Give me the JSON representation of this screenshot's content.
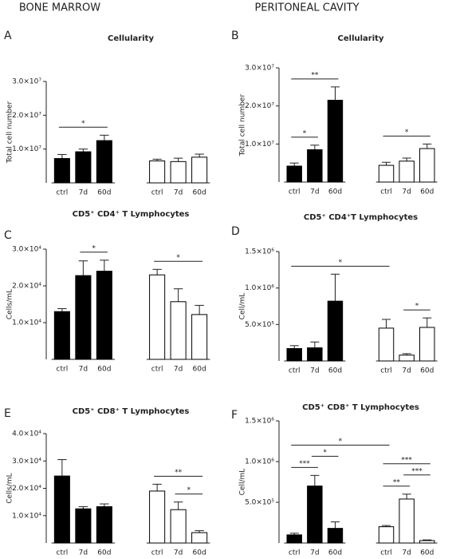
{
  "headers": [
    "BONE MARROW",
    "PERITONEAL CAVITY"
  ],
  "chart_data": [
    {
      "type": "bar",
      "panel": "A",
      "title": "Cellularity",
      "ylabel": "Total cell number",
      "categories": [
        "ctrl",
        "7d",
        "60d"
      ],
      "series": [
        {
          "color": "#000000",
          "values": [
            7200000,
            9200000,
            12500000
          ],
          "errors": [
            1200000,
            800000,
            1600000
          ]
        },
        {
          "color": "#ffffff",
          "values": [
            6500000,
            6300000,
            7600000
          ],
          "errors": [
            500000,
            1000000,
            900000
          ]
        }
      ],
      "ylim": [
        0,
        30000000
      ],
      "yticks": [
        {
          "value": 10000000,
          "label": "1.0×10⁷"
        },
        {
          "value": 20000000,
          "label": "2.0×10⁷"
        },
        {
          "value": 30000000,
          "label": "3.0×10⁷"
        }
      ],
      "annotations": [
        {
          "text": "*",
          "from": 0,
          "to": 2
        }
      ]
    },
    {
      "type": "bar",
      "panel": "B",
      "title": "Cellularity",
      "ylabel": "Total cell number",
      "categories": [
        "ctrl",
        "7d",
        "60d"
      ],
      "series": [
        {
          "color": "#000000",
          "values": [
            4200000,
            8500000,
            21500000
          ],
          "errors": [
            800000,
            1200000,
            3500000
          ]
        },
        {
          "color": "#ffffff",
          "values": [
            4400000,
            5500000,
            8800000
          ],
          "errors": [
            800000,
            800000,
            1200000
          ]
        }
      ],
      "ylim": [
        0,
        30000000
      ],
      "yticks": [
        {
          "value": 10000000,
          "label": "1.0×10⁷"
        },
        {
          "value": 20000000,
          "label": "2.0×10⁷"
        },
        {
          "value": 30000000,
          "label": "3.0×10⁷"
        }
      ],
      "annotations": [
        {
          "text": "*",
          "from": 0,
          "to": 1
        },
        {
          "text": "**",
          "from": 0,
          "to": 2
        },
        {
          "text": "*",
          "from": 3,
          "to": 5
        }
      ]
    },
    {
      "type": "bar",
      "panel": "C",
      "title": "CD5⁺ CD4⁺ T Lymphocytes",
      "ylabel": "Cells/mL",
      "categories": [
        "ctrl",
        "7d",
        "60d"
      ],
      "series": [
        {
          "color": "#000000",
          "values": [
            13000,
            22800,
            24000
          ],
          "errors": [
            800,
            4000,
            3000
          ]
        },
        {
          "color": "#ffffff",
          "values": [
            23000,
            15700,
            12200
          ],
          "errors": [
            1500,
            3500,
            2500
          ]
        }
      ],
      "ylim": [
        0,
        30000
      ],
      "yticks": [
        {
          "value": 10000,
          "label": "1.0×10⁴"
        },
        {
          "value": 20000,
          "label": "2.0×10⁴"
        },
        {
          "value": 30000,
          "label": "3.0×10⁴"
        }
      ],
      "annotations": [
        {
          "text": "*",
          "from": 1,
          "to": 2
        },
        {
          "text": "*",
          "from": 3,
          "to": 5
        }
      ]
    },
    {
      "type": "bar",
      "panel": "D",
      "title": "CD5⁺ CD4⁺T Lymphocytes",
      "ylabel": "Cell/mL",
      "categories": [
        "ctrl",
        "7d",
        "60d"
      ],
      "series": [
        {
          "color": "#000000",
          "values": [
            170000,
            180000,
            820000
          ],
          "errors": [
            40000,
            80000,
            370000
          ]
        },
        {
          "color": "#ffffff",
          "values": [
            450000,
            80000,
            460000
          ],
          "errors": [
            120000,
            20000,
            130000
          ]
        }
      ],
      "ylim": [
        0,
        1500000
      ],
      "yticks": [
        {
          "value": 500000,
          "label": "5.0×10⁵"
        },
        {
          "value": 1000000,
          "label": "1.0×10⁶"
        },
        {
          "value": 1500000,
          "label": "1.5×10⁶"
        }
      ],
      "annotations": [
        {
          "text": "*",
          "from": 4,
          "to": 5
        },
        {
          "text": "*",
          "from": 0,
          "to": 3
        }
      ]
    },
    {
      "type": "bar",
      "panel": "E",
      "title": "CD5⁺ CD8⁺ T Lymphocytes",
      "ylabel": "Cells/mL",
      "categories": [
        "ctrl",
        "7d",
        "60d"
      ],
      "series": [
        {
          "color": "#000000",
          "values": [
            24500,
            12500,
            13300
          ],
          "errors": [
            6000,
            800,
            1000
          ]
        },
        {
          "color": "#ffffff",
          "values": [
            19000,
            12200,
            3800
          ],
          "errors": [
            2500,
            2800,
            700
          ]
        }
      ],
      "ylim": [
        0,
        40000
      ],
      "yticks": [
        {
          "value": 10000,
          "label": "1.0×10⁴"
        },
        {
          "value": 20000,
          "label": "2.0×10⁴"
        },
        {
          "value": 30000,
          "label": "3.0×10⁴"
        },
        {
          "value": 40000,
          "label": "4.0×10⁴"
        }
      ],
      "annotations": [
        {
          "text": "*",
          "from": 4,
          "to": 5
        },
        {
          "text": "**",
          "from": 3,
          "to": 5
        }
      ]
    },
    {
      "type": "bar",
      "panel": "F",
      "title": "CD5⁺ CD8⁺ T Lymphocytes",
      "ylabel": "Cell/mL",
      "categories": [
        "ctrl",
        "7d",
        "60d"
      ],
      "series": [
        {
          "color": "#000000",
          "values": [
            100000,
            700000,
            180000
          ],
          "errors": [
            20000,
            130000,
            80000
          ]
        },
        {
          "color": "#ffffff",
          "values": [
            200000,
            540000,
            30000
          ],
          "errors": [
            15000,
            60000,
            8000
          ]
        }
      ],
      "ylim": [
        0,
        1500000
      ],
      "yticks": [
        {
          "value": 500000,
          "label": "5.0×10⁵"
        },
        {
          "value": 1000000,
          "label": "1.0×10⁶"
        },
        {
          "value": 1500000,
          "label": "1.5×10⁶"
        }
      ],
      "annotations": [
        {
          "text": "***",
          "from": 0,
          "to": 1
        },
        {
          "text": "*",
          "from": 1,
          "to": 2
        },
        {
          "text": "**",
          "from": 3,
          "to": 4
        },
        {
          "text": "***",
          "from": 4,
          "to": 5
        },
        {
          "text": "***",
          "from": 3,
          "to": 5
        },
        {
          "text": "*",
          "from": 0,
          "to": 3
        }
      ]
    }
  ]
}
